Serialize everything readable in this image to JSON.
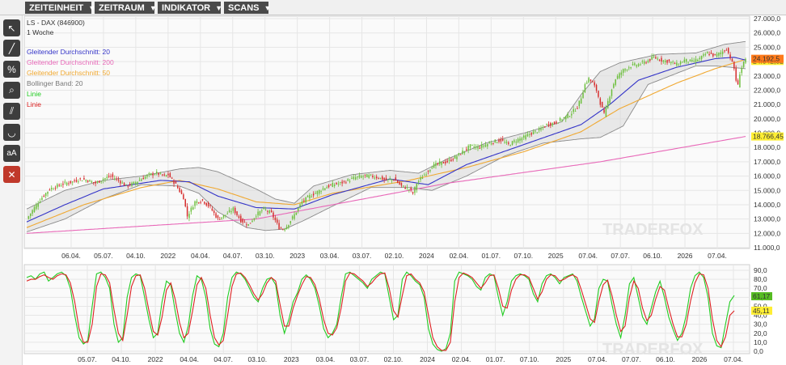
{
  "menu": {
    "items": [
      {
        "label": "ZEITEINHEIT"
      },
      {
        "label": "ZEITRAUM"
      },
      {
        "label": "INDIKATOR"
      },
      {
        "label": "SCANS"
      }
    ]
  },
  "toolbar": {
    "tools": [
      {
        "icon": "cursor-icon",
        "glyph": "↖"
      },
      {
        "icon": "line-tool-icon",
        "glyph": "╱"
      },
      {
        "icon": "percent-icon",
        "glyph": "%"
      },
      {
        "icon": "magnifier-icon",
        "glyph": "⌕"
      },
      {
        "icon": "parallel-lines-icon",
        "glyph": "⫽"
      },
      {
        "icon": "curve-icon",
        "glyph": "◡"
      },
      {
        "icon": "text-size-icon",
        "glyph": "aA"
      },
      {
        "icon": "delete-icon",
        "glyph": "✕"
      }
    ]
  },
  "watermark": "TRADERFOX",
  "colors": {
    "up_candle": "#6bbf3a",
    "down_candle": "#d62b2b",
    "ma20": "#3434c8",
    "ma200": "#e868b8",
    "ma50": "#f0a830",
    "bollinger": "#808080",
    "stoch_k": "#22cc22",
    "stoch_d": "#dd2222"
  },
  "chart_data": [
    {
      "type": "candlestick",
      "title": "LS - DAX (846900)",
      "subtitle": "1 Woche",
      "legend": [
        {
          "label": "Gleitender Durchschnitt: 20",
          "color": "#3434c8"
        },
        {
          "label": "Gleitender Durchschnitt: 200",
          "color": "#e868b8"
        },
        {
          "label": "Gleitender Durchschnitt: 50",
          "color": "#f0a830"
        },
        {
          "label": "Bollinger Band: 20",
          "color": "#777777"
        },
        {
          "label": "Linie",
          "color": "#22cc22"
        },
        {
          "label": "Linie",
          "color": "#dd2222"
        }
      ],
      "ylim": [
        11000,
        27000
      ],
      "y_ticks": [
        "27.000,0",
        "26.000,0",
        "25.000,0",
        "24.000,0",
        "23.000,0",
        "22.000,0",
        "21.000,0",
        "20.000,0",
        "19.000,0",
        "18.000,0",
        "17.000,0",
        "16.000,0",
        "15.000,0",
        "14.000,0",
        "13.000,0",
        "12.000,0",
        "11.000,0"
      ],
      "x_ticks": [
        "06.04.",
        "05.07.",
        "04.10.",
        "2022",
        "04.04.",
        "04.07.",
        "03.10.",
        "2023",
        "03.04.",
        "03.07.",
        "02.10.",
        "2024",
        "02.04.",
        "01.07.",
        "07.10.",
        "2025",
        "07.04.",
        "07.07.",
        "06.10.",
        "2026",
        "07.04."
      ],
      "price_labels": [
        {
          "text": "24.103,5",
          "value": 24103.5,
          "color": "#55bb22"
        },
        {
          "text": "24.042,82",
          "value": 24042.82,
          "color": "#ffee33"
        },
        {
          "text": "24.192,5",
          "value": 24192.5,
          "color": "#ff7a1a"
        },
        {
          "text": "18.766,45",
          "value": 18766.45,
          "color": "#ffee33"
        }
      ],
      "close_path": [
        [
          0,
          13000
        ],
        [
          4,
          13800
        ],
        [
          8,
          14500
        ],
        [
          12,
          15100
        ],
        [
          16,
          15300
        ],
        [
          20,
          15500
        ],
        [
          24,
          15600
        ],
        [
          28,
          15800
        ],
        [
          32,
          15700
        ],
        [
          36,
          15500
        ],
        [
          40,
          15800
        ],
        [
          44,
          16000
        ],
        [
          48,
          15700
        ],
        [
          52,
          15300
        ],
        [
          56,
          15500
        ],
        [
          60,
          15800
        ],
        [
          64,
          16100
        ],
        [
          68,
          16200
        ],
        [
          72,
          16000
        ],
        [
          74,
          16100
        ],
        [
          78,
          15400
        ],
        [
          82,
          14500
        ],
        [
          84,
          13200
        ],
        [
          88,
          14200
        ],
        [
          92,
          14300
        ],
        [
          96,
          13800
        ],
        [
          100,
          13000
        ],
        [
          104,
          13300
        ],
        [
          108,
          13700
        ],
        [
          112,
          12900
        ],
        [
          116,
          12600
        ],
        [
          120,
          13300
        ],
        [
          124,
          13700
        ],
        [
          128,
          13400
        ],
        [
          132,
          12400
        ],
        [
          134,
          12300
        ],
        [
          136,
          12500
        ],
        [
          140,
          13300
        ],
        [
          144,
          14200
        ],
        [
          148,
          14600
        ],
        [
          152,
          14900
        ],
        [
          156,
          15200
        ],
        [
          160,
          15400
        ],
        [
          164,
          15500
        ],
        [
          168,
          15700
        ],
        [
          172,
          15900
        ],
        [
          176,
          16000
        ],
        [
          180,
          16000
        ],
        [
          184,
          15900
        ],
        [
          188,
          15700
        ],
        [
          192,
          15800
        ],
        [
          196,
          15300
        ],
        [
          200,
          15100
        ],
        [
          202,
          14800
        ],
        [
          204,
          15500
        ],
        [
          208,
          16100
        ],
        [
          212,
          16700
        ],
        [
          216,
          16900
        ],
        [
          220,
          17000
        ],
        [
          224,
          17300
        ],
        [
          228,
          17700
        ],
        [
          232,
          18100
        ],
        [
          236,
          18000
        ],
        [
          240,
          18200
        ],
        [
          244,
          18400
        ],
        [
          248,
          18500
        ],
        [
          252,
          18200
        ],
        [
          256,
          18500
        ],
        [
          260,
          18700
        ],
        [
          264,
          19000
        ],
        [
          268,
          19200
        ],
        [
          272,
          19600
        ],
        [
          276,
          19700
        ],
        [
          280,
          20000
        ],
        [
          284,
          20300
        ],
        [
          288,
          20800
        ],
        [
          290,
          21500
        ],
        [
          292,
          22400
        ],
        [
          294,
          22800
        ],
        [
          296,
          22500
        ],
        [
          298,
          22000
        ],
        [
          300,
          21100
        ],
        [
          302,
          20300
        ],
        [
          304,
          21200
        ],
        [
          306,
          22100
        ],
        [
          308,
          22800
        ],
        [
          312,
          23400
        ],
        [
          316,
          23700
        ],
        [
          320,
          23800
        ],
        [
          324,
          24000
        ],
        [
          328,
          24300
        ],
        [
          332,
          24100
        ],
        [
          336,
          24000
        ],
        [
          340,
          23800
        ],
        [
          344,
          24100
        ],
        [
          348,
          24000
        ],
        [
          352,
          24200
        ],
        [
          356,
          24600
        ],
        [
          360,
          24400
        ],
        [
          364,
          24700
        ],
        [
          366,
          24900
        ],
        [
          368,
          24300
        ],
        [
          370,
          23500
        ],
        [
          371,
          22700
        ],
        [
          372,
          22300
        ],
        [
          373,
          23200
        ],
        [
          375,
          24000
        ],
        [
          376,
          24050
        ]
      ],
      "ma200_path": [
        [
          0,
          12000
        ],
        [
          120,
          13000
        ],
        [
          220,
          15500
        ],
        [
          300,
          17000
        ],
        [
          376,
          18766
        ]
      ],
      "ma50_path": [
        [
          0,
          12400
        ],
        [
          30,
          14000
        ],
        [
          60,
          15200
        ],
        [
          80,
          15700
        ],
        [
          100,
          15100
        ],
        [
          120,
          14200
        ],
        [
          140,
          14000
        ],
        [
          160,
          14800
        ],
        [
          200,
          15700
        ],
        [
          230,
          16600
        ],
        [
          260,
          17700
        ],
        [
          290,
          19100
        ],
        [
          310,
          20700
        ],
        [
          340,
          22500
        ],
        [
          360,
          23500
        ],
        [
          376,
          24150
        ]
      ],
      "ma20_path": [
        [
          0,
          12800
        ],
        [
          20,
          14000
        ],
        [
          40,
          15100
        ],
        [
          70,
          15700
        ],
        [
          85,
          15600
        ],
        [
          100,
          14600
        ],
        [
          120,
          13800
        ],
        [
          140,
          13700
        ],
        [
          160,
          14700
        ],
        [
          190,
          15800
        ],
        [
          210,
          15400
        ],
        [
          230,
          16800
        ],
        [
          260,
          18200
        ],
        [
          290,
          19600
        ],
        [
          305,
          21000
        ],
        [
          320,
          22700
        ],
        [
          340,
          23600
        ],
        [
          360,
          24200
        ],
        [
          370,
          24300
        ],
        [
          376,
          24100
        ]
      ],
      "bb_upper_path": [
        [
          0,
          13700
        ],
        [
          20,
          15000
        ],
        [
          40,
          15700
        ],
        [
          60,
          16000
        ],
        [
          80,
          16500
        ],
        [
          90,
          16600
        ],
        [
          100,
          16300
        ],
        [
          120,
          15100
        ],
        [
          130,
          14400
        ],
        [
          140,
          14100
        ],
        [
          150,
          15300
        ],
        [
          170,
          16100
        ],
        [
          190,
          16400
        ],
        [
          205,
          16200
        ],
        [
          220,
          17200
        ],
        [
          240,
          18300
        ],
        [
          260,
          19000
        ],
        [
          280,
          19800
        ],
        [
          290,
          21700
        ],
        [
          300,
          23300
        ],
        [
          310,
          23900
        ],
        [
          330,
          24500
        ],
        [
          350,
          24600
        ],
        [
          365,
          25200
        ],
        [
          376,
          25400
        ]
      ],
      "bb_lower_path": [
        [
          0,
          12100
        ],
        [
          20,
          13000
        ],
        [
          40,
          14400
        ],
        [
          60,
          15400
        ],
        [
          80,
          15300
        ],
        [
          90,
          14800
        ],
        [
          100,
          13500
        ],
        [
          115,
          12400
        ],
        [
          125,
          12200
        ],
        [
          135,
          12300
        ],
        [
          145,
          12900
        ],
        [
          160,
          13900
        ],
        [
          180,
          15200
        ],
        [
          200,
          15200
        ],
        [
          212,
          15000
        ],
        [
          230,
          16000
        ],
        [
          250,
          17400
        ],
        [
          270,
          18300
        ],
        [
          290,
          18600
        ],
        [
          300,
          18700
        ],
        [
          312,
          19500
        ],
        [
          325,
          22400
        ],
        [
          350,
          23700
        ],
        [
          360,
          23700
        ],
        [
          376,
          23500
        ]
      ]
    },
    {
      "type": "line",
      "title": "",
      "ylim": [
        0,
        90
      ],
      "y_ticks": [
        "90,0",
        "80,0",
        "70,0",
        "60,0",
        "50,0",
        "40,0",
        "30,0",
        "20,0",
        "10,0",
        "0,0"
      ],
      "x_ticks": [
        "05.07.",
        "04.10.",
        "2022",
        "04.04.",
        "04.07.",
        "03.10.",
        "2023",
        "03.04.",
        "03.07.",
        "02.10.",
        "2024",
        "02.04.",
        "01.07.",
        "07.10.",
        "2025",
        "07.04.",
        "07.07.",
        "06.10.",
        "2026",
        "07.04."
      ],
      "value_labels": [
        {
          "text": "61,17",
          "value": 61.17,
          "color": "#55bb22"
        },
        {
          "text": "45,11",
          "value": 45.11,
          "color": "#ffee33"
        }
      ],
      "series": [
        {
          "color": "#22cc22",
          "values": [
            82,
            84,
            80,
            86,
            88,
            78,
            82,
            86,
            88,
            84,
            70,
            40,
            15,
            8,
            12,
            50,
            86,
            88,
            82,
            70,
            30,
            10,
            15,
            60,
            82,
            86,
            84,
            60,
            35,
            15,
            20,
            55,
            78,
            74,
            45,
            20,
            10,
            28,
            62,
            84,
            80,
            60,
            25,
            8,
            5,
            20,
            60,
            82,
            88,
            86,
            80,
            70,
            60,
            55,
            70,
            80,
            82,
            74,
            40,
            20,
            35,
            55,
            65,
            80,
            85,
            80,
            70,
            50,
            25,
            15,
            20,
            30,
            60,
            86,
            88,
            84,
            80,
            76,
            70,
            80,
            84,
            88,
            86,
            60,
            35,
            40,
            80,
            88,
            84,
            78,
            74,
            60,
            25,
            8,
            2,
            0,
            3,
            20,
            78,
            88,
            86,
            84,
            80,
            72,
            68,
            82,
            86,
            84,
            60,
            40,
            55,
            78,
            84,
            86,
            84,
            80,
            64,
            55,
            75,
            84,
            86,
            82,
            75,
            82,
            84,
            86,
            78,
            60,
            44,
            28,
            36,
            70,
            80,
            78,
            52,
            30,
            15,
            40,
            75,
            82,
            60,
            38,
            30,
            48,
            66,
            78,
            60,
            38,
            24,
            12,
            20,
            40,
            70,
            84,
            88,
            82,
            60,
            20,
            6,
            4,
            30,
            55,
            62
          ]
        },
        {
          "color": "#dd2222",
          "values": [
            78,
            80,
            80,
            83,
            85,
            82,
            80,
            84,
            86,
            85,
            76,
            55,
            25,
            10,
            10,
            30,
            72,
            86,
            85,
            76,
            46,
            20,
            12,
            40,
            72,
            84,
            85,
            70,
            45,
            22,
            18,
            38,
            68,
            76,
            58,
            32,
            15,
            20,
            45,
            74,
            82,
            70,
            40,
            15,
            7,
            12,
            40,
            72,
            86,
            87,
            82,
            74,
            64,
            57,
            64,
            76,
            82,
            78,
            52,
            28,
            28,
            48,
            62,
            74,
            83,
            82,
            74,
            58,
            35,
            20,
            18,
            26,
            48,
            78,
            87,
            86,
            82,
            78,
            72,
            76,
            82,
            86,
            87,
            70,
            45,
            38,
            62,
            84,
            86,
            80,
            76,
            66,
            40,
            15,
            5,
            1,
            1,
            10,
            55,
            82,
            87,
            85,
            82,
            76,
            70,
            76,
            84,
            85,
            70,
            50,
            48,
            68,
            80,
            85,
            85,
            82,
            70,
            58,
            66,
            80,
            85,
            84,
            78,
            80,
            83,
            85,
            82,
            68,
            52,
            36,
            32,
            56,
            74,
            79,
            62,
            40,
            22,
            28,
            60,
            78,
            70,
            48,
            34,
            40,
            58,
            72,
            68,
            48,
            30,
            16,
            16,
            30,
            56,
            76,
            86,
            85,
            70,
            36,
            12,
            5,
            16,
            40,
            45
          ]
        }
      ]
    }
  ]
}
